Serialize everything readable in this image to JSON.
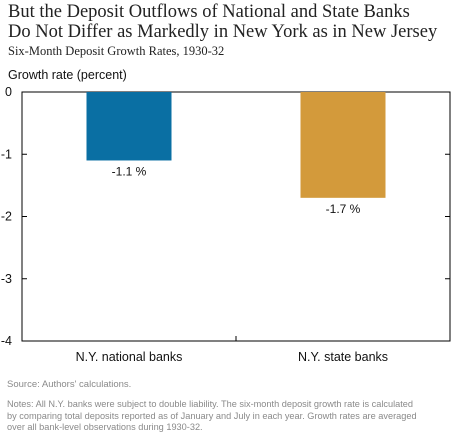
{
  "title_line1": "But the Deposit Outflows of National and State Banks",
  "title_line2": "Do Not Differ as Markedly in New York as in New Jersey",
  "subtitle": "Six-Month Deposit Growth Rates, 1930-32",
  "source": "Source: Authors' calculations.",
  "notes": [
    "Notes: All N.Y. banks were subject to double liability. The six-month deposit growth rate is calculated",
    "by comparing total deposits reported as of January and July in each year. Growth rates are averaged",
    "over all bank-level observations during 1930-32."
  ],
  "colors": {
    "national": "#0a6fa3",
    "state": "#d39a3b",
    "axis": "#000000"
  },
  "chart_data": {
    "type": "bar",
    "categories": [
      "N.Y. national banks",
      "N.Y. state banks"
    ],
    "values": [
      -1.1,
      -1.7
    ],
    "data_labels": [
      "-1.1 %",
      "-1.7 %"
    ],
    "ylabel": "Growth rate (percent)",
    "xlabel": "",
    "ylim": [
      -4,
      0
    ],
    "yticks": [
      0,
      -1,
      -2,
      -3,
      -4
    ],
    "grid": false
  }
}
